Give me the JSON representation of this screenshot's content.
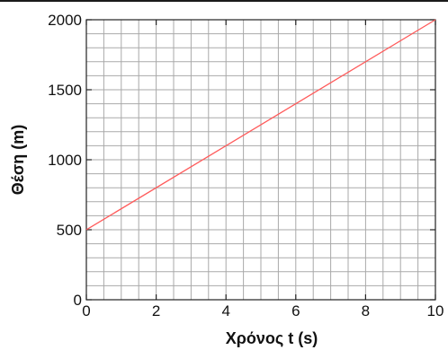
{
  "chart_data": {
    "type": "line",
    "xlabel": "Χρόνος t (s)",
    "ylabel": "Θέση  (m)",
    "xlim": [
      0,
      10
    ],
    "ylim": [
      0,
      2000
    ],
    "xticks": [
      0,
      2,
      4,
      6,
      8,
      10
    ],
    "yticks": [
      0,
      500,
      1000,
      1500,
      2000
    ],
    "grid": true,
    "grid_minor_x_step": 0.5,
    "grid_minor_y_step": 100,
    "series": [
      {
        "x": [
          0,
          10
        ],
        "y": [
          500,
          2000
        ],
        "color": "#ff5a5a"
      }
    ]
  },
  "colors": {
    "grid": "#a9a9a9",
    "axis": "#222222",
    "line": "#ff5a5a"
  }
}
